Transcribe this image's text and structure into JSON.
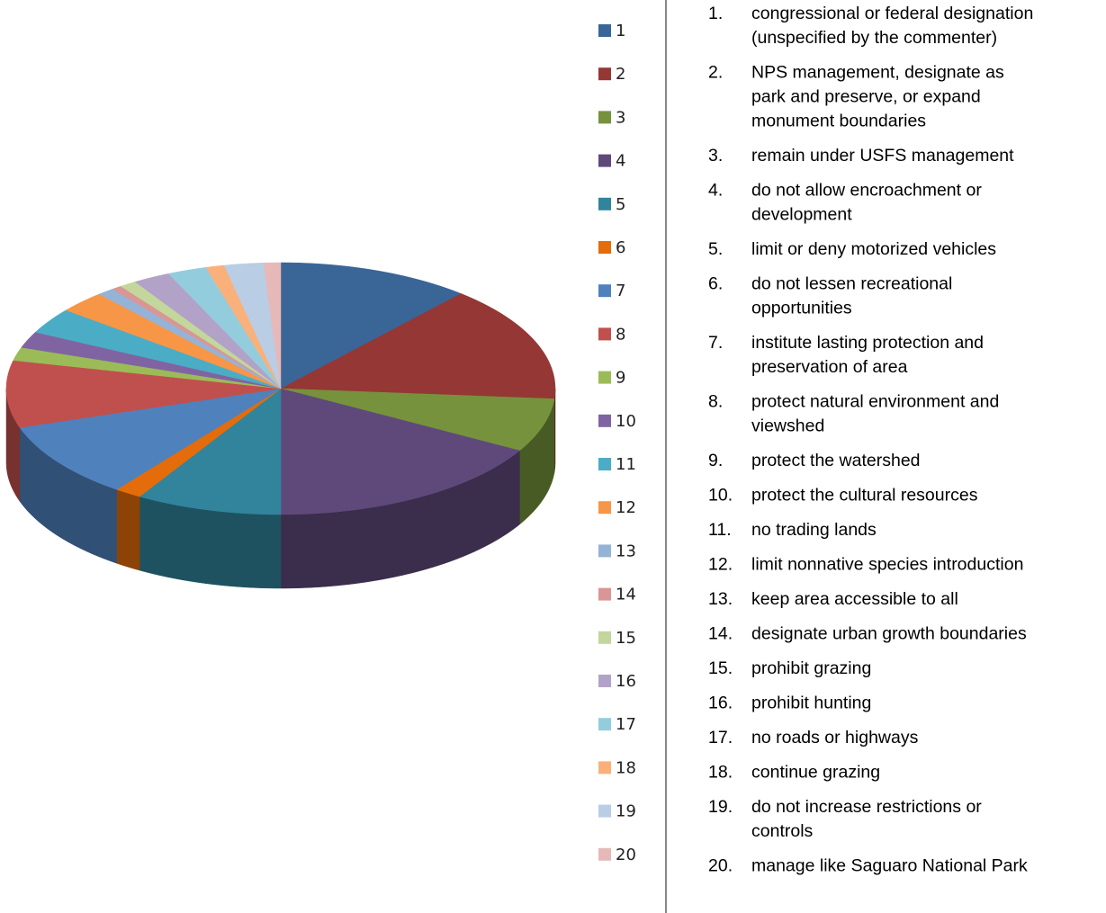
{
  "chart_data": {
    "type": "pie",
    "categories": [
      "1",
      "2",
      "3",
      "4",
      "5",
      "6",
      "7",
      "8",
      "9",
      "10",
      "11",
      "12",
      "13",
      "14",
      "15",
      "16",
      "17",
      "18",
      "19",
      "20"
    ],
    "values": [
      11.4,
      14.9,
      6.9,
      16.8,
      8.6,
      1.6,
      9.8,
      8.6,
      1.7,
      2.1,
      3.3,
      2.8,
      1,
      0.6,
      1,
      2.2,
      2.3,
      1.1,
      2.3,
      1
    ],
    "colors": [
      "#3a6597",
      "#953735",
      "#76923c",
      "#5f497a",
      "#31849b",
      "#e46c0a",
      "#4f81bd",
      "#c0504d",
      "#9bbb59",
      "#8064a2",
      "#4bacc6",
      "#f79646",
      "#95b3d7",
      "#d99694",
      "#c3d69b",
      "#b3a2c7",
      "#93cddd",
      "#fab07a",
      "#b9cde5",
      "#e6b9b8"
    ],
    "items": [
      {
        "number": "1.",
        "lines": [
          "congressional or federal designation",
          "(unspecified by the commenter)"
        ]
      },
      {
        "number": "2.",
        "lines": [
          "NPS management, designate as",
          "park and preserve, or expand",
          "monument boundaries"
        ]
      },
      {
        "number": "3.",
        "lines": [
          "remain under USFS management"
        ]
      },
      {
        "number": "4.",
        "lines": [
          "do not allow encroachment or",
          "development"
        ]
      },
      {
        "number": "5.",
        "lines": [
          "limit or deny motorized vehicles"
        ]
      },
      {
        "number": "6.",
        "lines": [
          "do not lessen recreational",
          "opportunities"
        ]
      },
      {
        "number": "7.",
        "lines": [
          "institute lasting protection and",
          "preservation of area"
        ]
      },
      {
        "number": "8.",
        "lines": [
          "protect natural environment and",
          "viewshed"
        ]
      },
      {
        "number": "9.",
        "lines": [
          "protect the watershed"
        ]
      },
      {
        "number": "10.",
        "lines": [
          "protect the cultural resources"
        ]
      },
      {
        "number": "11.",
        "lines": [
          "no trading lands"
        ]
      },
      {
        "number": "12.",
        "lines": [
          "limit nonnative species introduction"
        ]
      },
      {
        "number": "13.",
        "lines": [
          "keep area accessible to all"
        ]
      },
      {
        "number": "14.",
        "lines": [
          "designate urban growth boundaries"
        ]
      },
      {
        "number": "15.",
        "lines": [
          "prohibit grazing"
        ]
      },
      {
        "number": "16.",
        "lines": [
          "prohibit hunting"
        ]
      },
      {
        "number": "17.",
        "lines": [
          "no roads or highways"
        ]
      },
      {
        "number": "18.",
        "lines": [
          "continue grazing"
        ]
      },
      {
        "number": "19.",
        "lines": [
          "do not increase restrictions or",
          "controls"
        ]
      },
      {
        "number": "20.",
        "lines": [
          "manage like Saguaro National Park"
        ]
      }
    ]
  }
}
